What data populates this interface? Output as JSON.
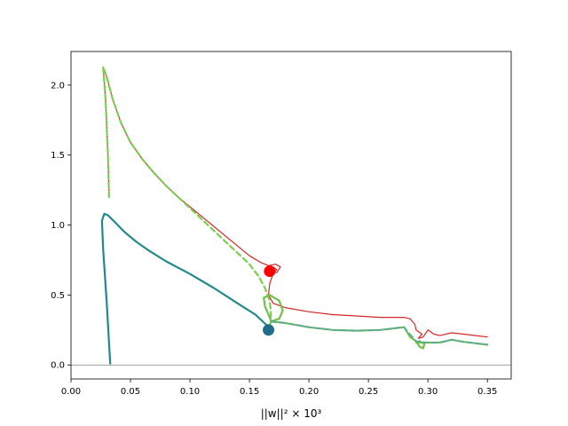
{
  "chart_data": {
    "type": "line",
    "title": "",
    "xlabel": "||w||² × 10³",
    "ylabel": "",
    "xlim": [
      0.0,
      0.37
    ],
    "ylim": [
      -0.1,
      2.24
    ],
    "x_ticks": [
      0.0,
      0.05,
      0.1,
      0.15,
      0.2,
      0.25,
      0.3,
      0.35
    ],
    "x_tick_labels": [
      "0.00",
      "0.05",
      "0.10",
      "0.15",
      "0.20",
      "0.25",
      "0.30",
      "0.35"
    ],
    "y_ticks": [
      0.0,
      0.5,
      1.0,
      1.5,
      2.0
    ],
    "y_tick_labels": [
      "0.0",
      "0.5",
      "1.0",
      "1.5",
      "2.0"
    ],
    "grid": false,
    "legend": "none",
    "reference_line": {
      "y": 0.0,
      "color": "#808080"
    },
    "series": [
      {
        "color": "#d62728",
        "style": "solid",
        "width": "thin",
        "points": [
          [
            0.032,
            1.2
          ],
          [
            0.031,
            1.5
          ],
          [
            0.029,
            1.9
          ],
          [
            0.027,
            2.13
          ],
          [
            0.03,
            2.06
          ],
          [
            0.035,
            1.9
          ],
          [
            0.042,
            1.73
          ],
          [
            0.05,
            1.59
          ],
          [
            0.06,
            1.47
          ],
          [
            0.07,
            1.37
          ],
          [
            0.08,
            1.28
          ],
          [
            0.09,
            1.2
          ],
          [
            0.1,
            1.13
          ],
          [
            0.11,
            1.06
          ],
          [
            0.12,
            0.99
          ],
          [
            0.13,
            0.92
          ],
          [
            0.14,
            0.85
          ],
          [
            0.15,
            0.78
          ],
          [
            0.16,
            0.73
          ],
          [
            0.166,
            0.71
          ],
          [
            0.172,
            0.72
          ],
          [
            0.176,
            0.7
          ],
          [
            0.173,
            0.66
          ],
          [
            0.167,
            0.66
          ],
          [
            0.166,
            0.69
          ],
          [
            0.17,
            0.7
          ],
          [
            0.173,
            0.68
          ],
          [
            0.17,
            0.66
          ],
          [
            0.167,
            0.58
          ],
          [
            0.166,
            0.5
          ],
          [
            0.17,
            0.44
          ],
          [
            0.18,
            0.41
          ],
          [
            0.2,
            0.38
          ],
          [
            0.22,
            0.36
          ],
          [
            0.24,
            0.35
          ],
          [
            0.26,
            0.34
          ],
          [
            0.28,
            0.34
          ],
          [
            0.285,
            0.33
          ],
          [
            0.289,
            0.29
          ],
          [
            0.29,
            0.25
          ],
          [
            0.295,
            0.22
          ],
          [
            0.292,
            0.19
          ],
          [
            0.296,
            0.2
          ],
          [
            0.3,
            0.25
          ],
          [
            0.305,
            0.22
          ],
          [
            0.31,
            0.21
          ],
          [
            0.32,
            0.23
          ],
          [
            0.33,
            0.22
          ],
          [
            0.34,
            0.21
          ],
          [
            0.35,
            0.2
          ]
        ]
      },
      {
        "color": "#7ccd50",
        "style": "dashed",
        "width": "thick",
        "points": [
          [
            0.032,
            1.2
          ],
          [
            0.031,
            1.5
          ],
          [
            0.029,
            1.9
          ],
          [
            0.027,
            2.13
          ],
          [
            0.03,
            2.06
          ],
          [
            0.035,
            1.9
          ],
          [
            0.042,
            1.73
          ],
          [
            0.05,
            1.59
          ],
          [
            0.06,
            1.47
          ],
          [
            0.07,
            1.37
          ],
          [
            0.08,
            1.28
          ],
          [
            0.09,
            1.2
          ],
          [
            0.1,
            1.12
          ],
          [
            0.11,
            1.04
          ],
          [
            0.12,
            0.96
          ],
          [
            0.13,
            0.88
          ],
          [
            0.14,
            0.8
          ],
          [
            0.15,
            0.72
          ],
          [
            0.158,
            0.63
          ],
          [
            0.163,
            0.55
          ],
          [
            0.167,
            0.46
          ],
          [
            0.168,
            0.38
          ],
          [
            0.168,
            0.3
          ],
          [
            0.165,
            0.27
          ]
        ]
      },
      {
        "color": "#6cc24a",
        "style": "solid",
        "width": "thick",
        "points": [
          [
            0.168,
            0.32
          ],
          [
            0.163,
            0.42
          ],
          [
            0.162,
            0.48
          ],
          [
            0.167,
            0.5
          ],
          [
            0.175,
            0.46
          ],
          [
            0.178,
            0.39
          ],
          [
            0.175,
            0.33
          ],
          [
            0.168,
            0.31
          ],
          [
            0.18,
            0.3
          ],
          [
            0.2,
            0.27
          ],
          [
            0.22,
            0.25
          ],
          [
            0.24,
            0.245
          ],
          [
            0.26,
            0.25
          ],
          [
            0.275,
            0.265
          ],
          [
            0.28,
            0.27
          ],
          [
            0.285,
            0.2
          ],
          [
            0.29,
            0.17
          ],
          [
            0.293,
            0.13
          ],
          [
            0.296,
            0.12
          ],
          [
            0.297,
            0.15
          ],
          [
            0.293,
            0.17
          ],
          [
            0.29,
            0.16
          ],
          [
            0.3,
            0.16
          ],
          [
            0.31,
            0.16
          ],
          [
            0.32,
            0.18
          ],
          [
            0.33,
            0.165
          ],
          [
            0.34,
            0.155
          ],
          [
            0.35,
            0.145
          ]
        ]
      },
      {
        "color": "#5aa0b4",
        "style": "dashed",
        "width": "normal",
        "points": [
          [
            0.168,
            0.31
          ],
          [
            0.18,
            0.3
          ],
          [
            0.2,
            0.27
          ],
          [
            0.22,
            0.25
          ],
          [
            0.24,
            0.245
          ],
          [
            0.26,
            0.25
          ],
          [
            0.275,
            0.265
          ],
          [
            0.28,
            0.27
          ],
          [
            0.29,
            0.17
          ],
          [
            0.3,
            0.16
          ],
          [
            0.31,
            0.16
          ],
          [
            0.32,
            0.18
          ],
          [
            0.33,
            0.165
          ],
          [
            0.34,
            0.155
          ],
          [
            0.35,
            0.145
          ]
        ]
      },
      {
        "color": "#22898a",
        "style": "solid",
        "width": "thick",
        "points": [
          [
            0.033,
            0.01
          ],
          [
            0.03,
            0.45
          ],
          [
            0.027,
            0.83
          ],
          [
            0.026,
            1.03
          ],
          [
            0.028,
            1.08
          ],
          [
            0.031,
            1.07
          ],
          [
            0.037,
            1.02
          ],
          [
            0.045,
            0.95
          ],
          [
            0.055,
            0.88
          ],
          [
            0.065,
            0.82
          ],
          [
            0.08,
            0.74
          ],
          [
            0.1,
            0.65
          ],
          [
            0.12,
            0.55
          ],
          [
            0.14,
            0.44
          ],
          [
            0.155,
            0.36
          ],
          [
            0.165,
            0.28
          ],
          [
            0.167,
            0.23
          ]
        ]
      }
    ],
    "markers": [
      {
        "x": 0.167,
        "y": 0.67,
        "color": "#ff0000"
      },
      {
        "x": 0.166,
        "y": 0.25,
        "color": "#1f6d8a"
      }
    ]
  }
}
